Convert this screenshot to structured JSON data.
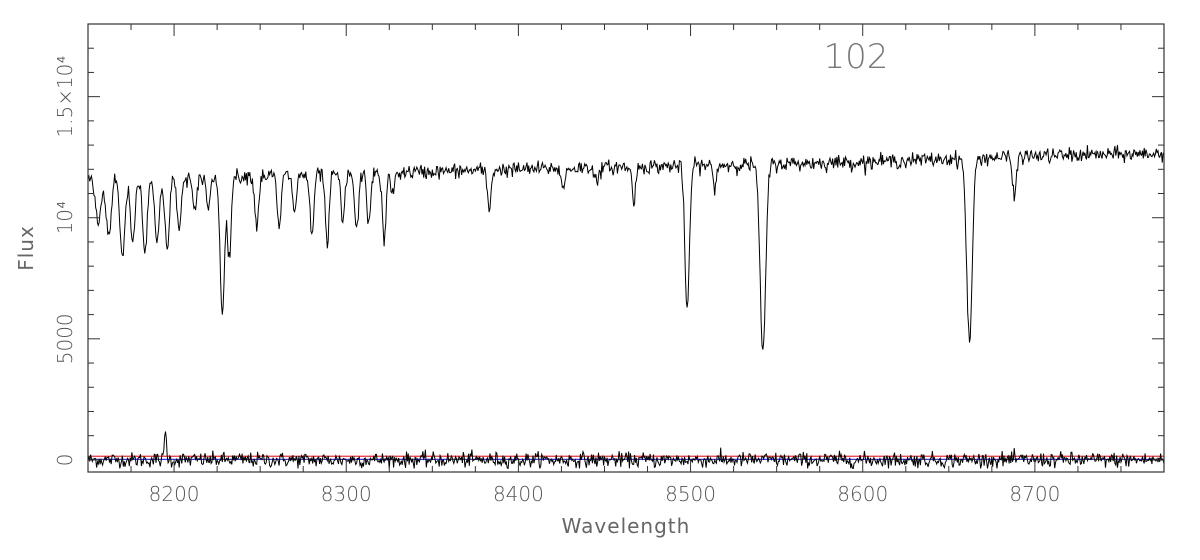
{
  "chart_data": {
    "type": "line",
    "title": "",
    "annotation": "102",
    "xlabel": "Wavelength",
    "ylabel": "Flux",
    "xlim": [
      8150,
      8775
    ],
    "ylim": [
      -500,
      18000
    ],
    "x_ticks": [
      {
        "value": 8200,
        "label": "8200"
      },
      {
        "value": 8300,
        "label": "8300"
      },
      {
        "value": 8400,
        "label": "8400"
      },
      {
        "value": 8500,
        "label": "8500"
      },
      {
        "value": 8600,
        "label": "8600"
      },
      {
        "value": 8700,
        "label": "8700"
      }
    ],
    "y_ticks": [
      {
        "value": 0,
        "label": "0"
      },
      {
        "value": 5000,
        "label": "5000"
      },
      {
        "value": 10000,
        "label": "10⁴"
      },
      {
        "value": 15000,
        "label": "1.5×10⁴"
      }
    ],
    "grid": false,
    "series": [
      {
        "role": "spectrum",
        "color": "#000000",
        "continuum": [
          [
            8150,
            11600
          ],
          [
            8300,
            11800
          ],
          [
            8400,
            12000
          ],
          [
            8500,
            12150
          ],
          [
            8600,
            12300
          ],
          [
            8700,
            12550
          ],
          [
            8775,
            12650
          ]
        ],
        "noise_amplitude": 250,
        "absorption_lines": [
          {
            "x": 8156,
            "depth": 1800,
            "width": 1.6
          },
          {
            "x": 8162,
            "depth": 2400,
            "width": 1.4
          },
          {
            "x": 8170,
            "depth": 3300,
            "width": 1.4
          },
          {
            "x": 8176,
            "depth": 2600,
            "width": 1.3
          },
          {
            "x": 8183,
            "depth": 3000,
            "width": 1.3
          },
          {
            "x": 8190,
            "depth": 2700,
            "width": 1.3
          },
          {
            "x": 8196,
            "depth": 3000,
            "width": 1.3
          },
          {
            "x": 8203,
            "depth": 2200,
            "width": 1.2
          },
          {
            "x": 8212,
            "depth": 1500,
            "width": 1.2
          },
          {
            "x": 8220,
            "depth": 1300,
            "width": 1.1
          },
          {
            "x": 8228,
            "depth": 5500,
            "width": 1.3
          },
          {
            "x": 8232,
            "depth": 3300,
            "width": 1.1
          },
          {
            "x": 8248,
            "depth": 2100,
            "width": 1.1
          },
          {
            "x": 8261,
            "depth": 2200,
            "width": 1.1
          },
          {
            "x": 8270,
            "depth": 1500,
            "width": 1.1
          },
          {
            "x": 8280,
            "depth": 2600,
            "width": 1.1
          },
          {
            "x": 8289,
            "depth": 2900,
            "width": 1.1
          },
          {
            "x": 8298,
            "depth": 2000,
            "width": 1.1
          },
          {
            "x": 8306,
            "depth": 2400,
            "width": 1.1
          },
          {
            "x": 8313,
            "depth": 2000,
            "width": 1.1
          },
          {
            "x": 8322,
            "depth": 2800,
            "width": 1.1
          },
          {
            "x": 8327,
            "depth": 900,
            "width": 1.0
          },
          {
            "x": 8383,
            "depth": 1700,
            "width": 1.0
          },
          {
            "x": 8426,
            "depth": 900,
            "width": 1.0
          },
          {
            "x": 8446,
            "depth": 700,
            "width": 1.0
          },
          {
            "x": 8467,
            "depth": 1400,
            "width": 1.0
          },
          {
            "x": 8498,
            "depth": 6000,
            "width": 1.3
          },
          {
            "x": 8514,
            "depth": 900,
            "width": 1.0
          },
          {
            "x": 8542,
            "depth": 7900,
            "width": 1.6
          },
          {
            "x": 8662,
            "depth": 7600,
            "width": 1.6
          },
          {
            "x": 8688,
            "depth": 1800,
            "width": 1.0
          }
        ]
      },
      {
        "role": "residual",
        "color": "#000000",
        "baseline": 0,
        "noise_amplitude": 280,
        "spike_at": 8195,
        "spike_value": 1200
      },
      {
        "role": "reference-line-upper",
        "color": "#e8303a",
        "y": 150
      },
      {
        "role": "reference-line-lower",
        "color": "#3a3adf",
        "y": 20
      }
    ],
    "colors": {
      "frame": "#333333",
      "text": "#555555",
      "spectrum": "#000000",
      "red_line": "#e8303a",
      "blue_line": "#3a3adf"
    }
  }
}
